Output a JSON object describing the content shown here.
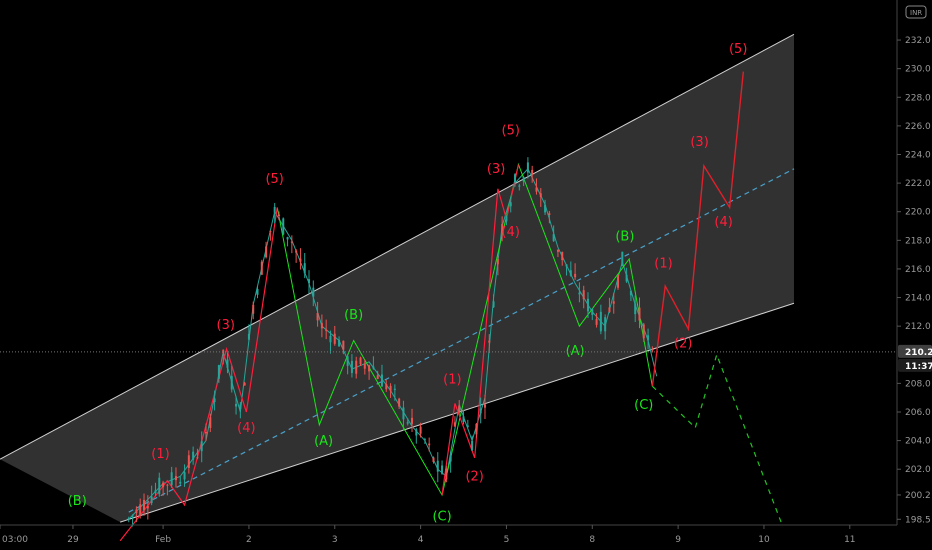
{
  "currency_badge": "INR",
  "colors": {
    "bg": "#000000",
    "channel": "#3a3a3a",
    "channel_edge": "#d0d0d0",
    "midline": "#4aa0c8",
    "up": "#26a69a",
    "down": "#ef5350",
    "wave_red": "#ff1e3c",
    "wave_green": "#19e619",
    "projection_red": "#e0202a",
    "projection_green": "#22c322",
    "price_badge": "#404040",
    "time_badge": "#1e1e1e"
  },
  "chart_data": {
    "type": "line",
    "title": "",
    "xlabel": "",
    "ylabel": "",
    "x_tick_labels": [
      {
        "t": 0.0,
        "label": "03:00"
      },
      {
        "t": 0.85,
        "label": "29"
      },
      {
        "t": 1.9,
        "label": "Feb"
      },
      {
        "t": 2.9,
        "label": "2"
      },
      {
        "t": 3.9,
        "label": "3"
      },
      {
        "t": 4.9,
        "label": "4"
      },
      {
        "t": 5.9,
        "label": "5"
      },
      {
        "t": 6.9,
        "label": "8"
      },
      {
        "t": 7.9,
        "label": "9"
      },
      {
        "t": 8.9,
        "label": "10"
      },
      {
        "t": 9.9,
        "label": "11"
      }
    ],
    "x_range": [
      0,
      10.45
    ],
    "y_ticks": [
      198.5,
      200.2,
      202.0,
      204.0,
      206.0,
      208.0,
      210.2,
      212.0,
      214.0,
      216.0,
      218.0,
      220.0,
      222.0,
      224.0,
      226.0,
      228.0,
      230.0,
      232.0
    ],
    "y_range": [
      198.1,
      234.8
    ],
    "price_label": "210.2",
    "time_label": "11:37",
    "channel": {
      "upper": [
        [
          0.0,
          202.7
        ],
        [
          9.25,
          232.4
        ]
      ],
      "lower": [
        [
          1.4,
          198.3
        ],
        [
          9.25,
          213.6
        ]
      ],
      "middle": [
        [
          1.5,
          199.0
        ],
        [
          9.25,
          223.0
        ]
      ]
    },
    "series": [
      {
        "name": "",
        "role": "price",
        "points": [
          [
            1.5,
            198.5
          ],
          [
            1.9,
            201.0
          ],
          [
            2.1,
            201.5
          ],
          [
            2.4,
            204.0
          ],
          [
            2.6,
            210.2
          ],
          [
            2.8,
            206.0
          ],
          [
            2.95,
            213.5
          ],
          [
            3.2,
            220.0
          ],
          [
            3.4,
            218.0
          ],
          [
            3.6,
            215.0
          ],
          [
            3.75,
            212.0
          ],
          [
            3.95,
            211.0
          ],
          [
            4.1,
            209.0
          ],
          [
            4.3,
            209.5
          ],
          [
            4.55,
            207.5
          ],
          [
            4.8,
            205.0
          ],
          [
            4.95,
            204.0
          ],
          [
            5.1,
            202.0
          ],
          [
            5.2,
            201.5
          ],
          [
            5.35,
            206.5
          ],
          [
            5.5,
            204.0
          ],
          [
            5.65,
            207.0
          ],
          [
            5.75,
            214.0
          ],
          [
            5.85,
            219.0
          ],
          [
            6.0,
            222.0
          ],
          [
            6.15,
            223.0
          ],
          [
            6.35,
            220.5
          ],
          [
            6.5,
            217.5
          ],
          [
            6.7,
            215.0
          ],
          [
            6.9,
            213.0
          ],
          [
            7.05,
            212.0
          ],
          [
            7.25,
            216.5
          ],
          [
            7.4,
            213.5
          ],
          [
            7.55,
            211.0
          ],
          [
            7.65,
            208.5
          ]
        ]
      },
      {
        "name": "",
        "role": "wave-green",
        "points": [
          [
            3.23,
            220.3
          ],
          [
            3.72,
            205.1
          ],
          [
            4.12,
            211.0
          ],
          [
            5.15,
            200.2
          ],
          [
            6.04,
            223.3
          ],
          [
            6.75,
            212.0
          ],
          [
            7.33,
            216.7
          ],
          [
            7.6,
            207.8
          ]
        ]
      },
      {
        "name": "",
        "role": "wave-red",
        "points": [
          [
            1.4,
            197.0
          ],
          [
            1.95,
            201.2
          ],
          [
            2.15,
            199.5
          ],
          [
            2.64,
            210.4
          ],
          [
            2.87,
            206.0
          ],
          [
            3.23,
            220.3
          ]
        ]
      },
      {
        "name": "",
        "role": "wave-red",
        "points": [
          [
            5.15,
            200.2
          ],
          [
            5.3,
            206.6
          ],
          [
            5.53,
            202.8
          ],
          [
            5.8,
            221.6
          ],
          [
            5.9,
            219.5
          ],
          [
            6.04,
            223.3
          ]
        ]
      },
      {
        "name": "",
        "role": "projection-red",
        "points": [
          [
            7.6,
            207.8
          ],
          [
            7.75,
            214.8
          ],
          [
            8.02,
            211.8
          ],
          [
            8.2,
            223.2
          ],
          [
            8.5,
            220.3
          ],
          [
            8.66,
            229.8
          ]
        ]
      },
      {
        "name": "",
        "role": "projection-green",
        "points": [
          [
            7.6,
            207.8
          ],
          [
            8.1,
            204.9
          ],
          [
            8.35,
            210.0
          ],
          [
            9.1,
            198.3
          ]
        ]
      }
    ],
    "wave_labels": [
      {
        "text": "(B)",
        "t": 0.9,
        "y": 199.5,
        "color": "green"
      },
      {
        "text": "(1)",
        "t": 1.87,
        "y": 202.8,
        "color": "red"
      },
      {
        "text": "(3)",
        "t": 2.63,
        "y": 211.8,
        "color": "red"
      },
      {
        "text": "(4)",
        "t": 2.87,
        "y": 204.6,
        "color": "red"
      },
      {
        "text": "(5)",
        "t": 3.2,
        "y": 222.0,
        "color": "red"
      },
      {
        "text": "(B)",
        "t": 4.12,
        "y": 212.5,
        "color": "green"
      },
      {
        "text": "(A)",
        "t": 3.77,
        "y": 203.7,
        "color": "green"
      },
      {
        "text": "(C)",
        "t": 5.15,
        "y": 198.4,
        "color": "green"
      },
      {
        "text": "(1)",
        "t": 5.27,
        "y": 208.0,
        "color": "red"
      },
      {
        "text": "(2)",
        "t": 5.53,
        "y": 201.2,
        "color": "red"
      },
      {
        "text": "(3)",
        "t": 5.78,
        "y": 222.7,
        "color": "red"
      },
      {
        "text": "(4)",
        "t": 5.95,
        "y": 218.3,
        "color": "red"
      },
      {
        "text": "(5)",
        "t": 5.95,
        "y": 225.4,
        "color": "red"
      },
      {
        "text": "(A)",
        "t": 6.7,
        "y": 210.0,
        "color": "green"
      },
      {
        "text": "(B)",
        "t": 7.28,
        "y": 218.0,
        "color": "green"
      },
      {
        "text": "(C)",
        "t": 7.5,
        "y": 206.2,
        "color": "green"
      },
      {
        "text": "(1)",
        "t": 7.73,
        "y": 216.1,
        "color": "red"
      },
      {
        "text": "(2)",
        "t": 7.96,
        "y": 210.5,
        "color": "red"
      },
      {
        "text": "(3)",
        "t": 8.15,
        "y": 224.6,
        "color": "red"
      },
      {
        "text": "(4)",
        "t": 8.43,
        "y": 219.0,
        "color": "red"
      },
      {
        "text": "(5)",
        "t": 8.6,
        "y": 231.1,
        "color": "red"
      }
    ]
  }
}
